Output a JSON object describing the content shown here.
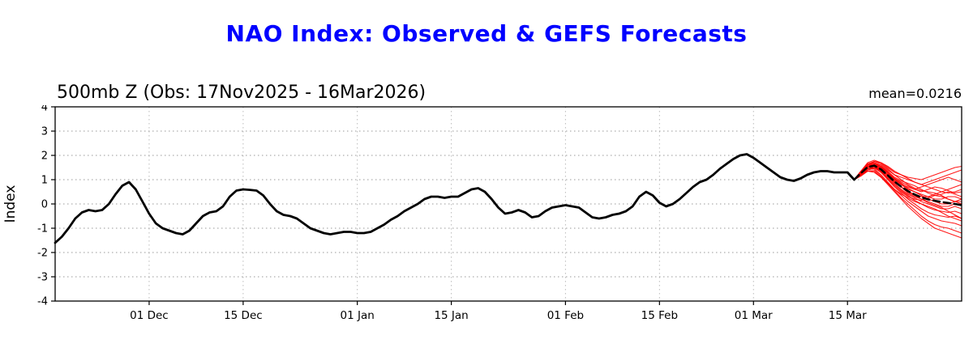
{
  "chart_data": {
    "type": "line",
    "title": "NAO Index: Observed & GEFS Forecasts",
    "subtitle": "500mb Z (Obs: 17Nov2025 - 16Mar2026)",
    "mean_label": "mean=0.0216",
    "ylabel": "Index",
    "ylim": [
      -4,
      4
    ],
    "xlim_days": [
      0,
      135
    ],
    "grid": true,
    "legend_position": "none",
    "y_ticks": [
      -4,
      -3,
      -2,
      -1,
      0,
      1,
      2,
      3,
      4
    ],
    "grid_y": [
      -3,
      -2,
      -1,
      0,
      1,
      2,
      3
    ],
    "x_ticks": [
      {
        "day": 14,
        "label": "01 Dec"
      },
      {
        "day": 28,
        "label": "15 Dec"
      },
      {
        "day": 45,
        "label": "01 Jan"
      },
      {
        "day": 59,
        "label": "15 Jan"
      },
      {
        "day": 76,
        "label": "01 Feb"
      },
      {
        "day": 90,
        "label": "15 Feb"
      },
      {
        "day": 104,
        "label": "01 Mar"
      },
      {
        "day": 118,
        "label": "15 Mar"
      }
    ],
    "observed": {
      "name": "Observed NAO index (17Nov2025 - 16Mar2026)",
      "start_day": 0,
      "step": 1,
      "values": [
        -1.6,
        -1.35,
        -1.0,
        -0.6,
        -0.35,
        -0.25,
        -0.3,
        -0.25,
        0.0,
        0.4,
        0.75,
        0.9,
        0.6,
        0.1,
        -0.4,
        -0.8,
        -1.0,
        -1.1,
        -1.2,
        -1.25,
        -1.1,
        -0.8,
        -0.5,
        -0.35,
        -0.3,
        -0.1,
        0.3,
        0.55,
        0.6,
        0.58,
        0.55,
        0.35,
        0.0,
        -0.3,
        -0.45,
        -0.5,
        -0.6,
        -0.8,
        -1.0,
        -1.1,
        -1.2,
        -1.25,
        -1.2,
        -1.15,
        -1.15,
        -1.2,
        -1.2,
        -1.15,
        -1.0,
        -0.85,
        -0.65,
        -0.5,
        -0.3,
        -0.15,
        0.0,
        0.2,
        0.3,
        0.3,
        0.25,
        0.3,
        0.3,
        0.45,
        0.6,
        0.65,
        0.5,
        0.2,
        -0.15,
        -0.4,
        -0.35,
        -0.25,
        -0.35,
        -0.55,
        -0.5,
        -0.3,
        -0.15,
        -0.1,
        -0.05,
        -0.1,
        -0.15,
        -0.35,
        -0.55,
        -0.6,
        -0.55,
        -0.45,
        -0.4,
        -0.3,
        -0.1,
        0.3,
        0.5,
        0.35,
        0.05,
        -0.1,
        0.0,
        0.2,
        0.45,
        0.7,
        0.9,
        1.0,
        1.2,
        1.45,
        1.65,
        1.85,
        2.0,
        2.05,
        1.9,
        1.7,
        1.5,
        1.3,
        1.1,
        1.0,
        0.95,
        1.05,
        1.2,
        1.3,
        1.35,
        1.35,
        1.3,
        1.3,
        1.3,
        1.0
      ]
    },
    "forecast": {
      "name": "GEFS ensemble forecasts",
      "start_day": 119,
      "step": 1,
      "mean": [
        1.0,
        1.27,
        1.52,
        1.58,
        1.42,
        1.18,
        0.92,
        0.71,
        0.53,
        0.39,
        0.27,
        0.19,
        0.13,
        0.08,
        0.04,
        0.0,
        -0.05
      ],
      "members": [
        [
          1.0,
          1.35,
          1.6,
          1.7,
          1.6,
          1.4,
          1.2,
          1.1,
          1.0,
          0.9,
          0.8,
          0.9,
          1.0,
          1.1,
          1.2,
          1.3,
          1.4
        ],
        [
          1.0,
          1.3,
          1.55,
          1.65,
          1.5,
          1.3,
          1.0,
          0.8,
          0.7,
          0.6,
          0.7,
          0.8,
          0.9,
          1.0,
          1.1,
          1.0,
          0.9
        ],
        [
          1.0,
          1.25,
          1.5,
          1.6,
          1.45,
          1.2,
          0.9,
          0.7,
          0.5,
          0.4,
          0.3,
          0.3,
          0.4,
          0.5,
          0.6,
          0.7,
          0.8
        ],
        [
          1.0,
          1.3,
          1.6,
          1.65,
          1.5,
          1.25,
          1.0,
          0.8,
          0.6,
          0.5,
          0.4,
          0.3,
          0.2,
          0.2,
          0.3,
          0.3,
          0.2
        ],
        [
          1.0,
          1.35,
          1.65,
          1.7,
          1.55,
          1.3,
          1.05,
          0.85,
          0.65,
          0.5,
          0.35,
          0.2,
          0.1,
          0.0,
          0.0,
          0.1,
          0.1
        ],
        [
          1.0,
          1.3,
          1.55,
          1.6,
          1.4,
          1.15,
          0.9,
          0.7,
          0.5,
          0.35,
          0.2,
          0.1,
          0.0,
          -0.1,
          -0.1,
          0.0,
          0.0
        ],
        [
          1.0,
          1.25,
          1.5,
          1.55,
          1.35,
          1.1,
          0.85,
          0.6,
          0.4,
          0.25,
          0.1,
          0.0,
          -0.1,
          -0.2,
          -0.2,
          -0.1,
          -0.2
        ],
        [
          1.0,
          1.3,
          1.5,
          1.5,
          1.3,
          1.05,
          0.8,
          0.55,
          0.35,
          0.15,
          0.0,
          -0.15,
          -0.25,
          -0.3,
          -0.35,
          -0.3,
          -0.4
        ],
        [
          1.0,
          1.2,
          1.45,
          1.5,
          1.3,
          1.0,
          0.7,
          0.45,
          0.2,
          0.0,
          -0.2,
          -0.35,
          -0.45,
          -0.5,
          -0.55,
          -0.5,
          -0.6
        ],
        [
          1.0,
          1.25,
          1.45,
          1.45,
          1.2,
          0.9,
          0.6,
          0.35,
          0.1,
          -0.1,
          -0.3,
          -0.5,
          -0.6,
          -0.7,
          -0.75,
          -0.8,
          -0.9
        ],
        [
          1.0,
          1.2,
          1.4,
          1.4,
          1.15,
          0.85,
          0.55,
          0.25,
          0.0,
          -0.25,
          -0.5,
          -0.7,
          -0.85,
          -0.95,
          -1.0,
          -1.1,
          -1.2
        ],
        [
          1.0,
          1.15,
          1.35,
          1.35,
          1.1,
          0.8,
          0.5,
          0.2,
          -0.1,
          -0.35,
          -0.6,
          -0.8,
          -1.0,
          -1.1,
          -1.2,
          -1.3,
          -1.4
        ],
        [
          1.0,
          1.3,
          1.6,
          1.75,
          1.7,
          1.5,
          1.3,
          1.2,
          1.1,
          1.05,
          1.0,
          1.1,
          1.2,
          1.3,
          1.4,
          1.5,
          1.55
        ],
        [
          1.0,
          1.35,
          1.7,
          1.8,
          1.7,
          1.55,
          1.35,
          1.2,
          1.05,
          0.9,
          0.8,
          0.7,
          0.6,
          0.5,
          0.45,
          0.5,
          0.6
        ],
        [
          1.0,
          1.2,
          1.4,
          1.5,
          1.35,
          1.05,
          0.75,
          0.5,
          0.3,
          0.2,
          0.15,
          0.25,
          0.35,
          0.3,
          0.2,
          0.1,
          0.0
        ],
        [
          1.0,
          1.25,
          1.55,
          1.65,
          1.55,
          1.35,
          1.1,
          0.95,
          0.85,
          0.75,
          0.6,
          0.45,
          0.35,
          0.4,
          0.5,
          0.4,
          0.3
        ],
        [
          1.0,
          1.3,
          1.5,
          1.55,
          1.4,
          1.2,
          0.95,
          0.7,
          0.45,
          0.3,
          0.2,
          0.05,
          -0.05,
          -0.15,
          -0.3,
          -0.45,
          -0.6
        ],
        [
          1.0,
          1.2,
          1.35,
          1.3,
          1.1,
          0.85,
          0.6,
          0.4,
          0.25,
          0.1,
          0.0,
          -0.1,
          -0.2,
          -0.35,
          -0.5,
          -0.6,
          -0.7
        ],
        [
          1.0,
          1.35,
          1.65,
          1.75,
          1.65,
          1.45,
          1.2,
          1.0,
          0.8,
          0.65,
          0.55,
          0.5,
          0.45,
          0.35,
          0.2,
          0.1,
          0.2
        ],
        [
          1.0,
          1.25,
          1.5,
          1.6,
          1.5,
          1.3,
          1.05,
          0.9,
          0.75,
          0.6,
          0.5,
          0.6,
          0.7,
          0.65,
          0.55,
          0.45,
          0.5
        ]
      ]
    },
    "colors": {
      "title": "#0000ff",
      "observed": "#000000",
      "members": "#ff0000",
      "mean": "#000000",
      "grid": "#999999",
      "vgrid": "#bbbbbb",
      "frame": "#000000"
    }
  }
}
